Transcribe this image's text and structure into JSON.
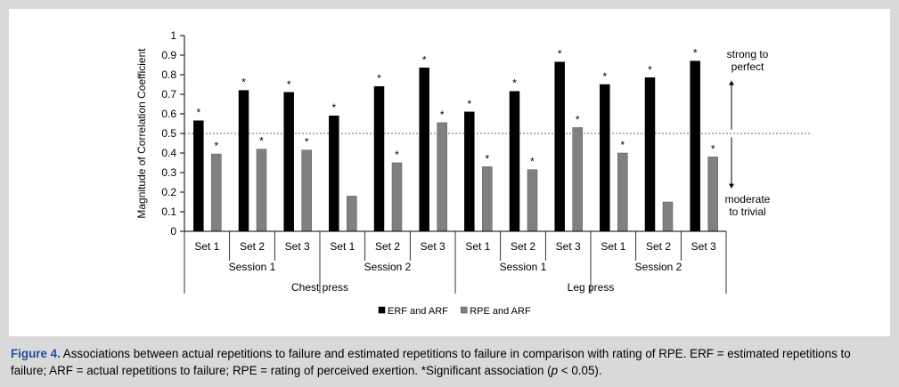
{
  "chart_data": {
    "type": "bar",
    "ylabel": "Magnitude of Correlation Coefficient",
    "ylim": [
      0,
      1
    ],
    "yticks": [
      "0",
      "0.1",
      "0.2",
      "0.3",
      "0.4",
      "0.5",
      "0.6",
      "0.7",
      "0.8",
      "0.9",
      "1"
    ],
    "categories": [
      "Set 1",
      "Set 2",
      "Set 3",
      "Set 1",
      "Set 2",
      "Set 3",
      "Set 1",
      "Set 2",
      "Set 3",
      "Set 1",
      "Set 2",
      "Set 3"
    ],
    "sessions": [
      "Session 1",
      "Session 2",
      "Session 1",
      "Session 2"
    ],
    "exercises": [
      "Chest press",
      "Leg press"
    ],
    "series": [
      {
        "name": "ERF and ARF",
        "color": "#000000",
        "values": [
          0.565,
          0.72,
          0.71,
          0.59,
          0.74,
          0.835,
          0.61,
          0.715,
          0.865,
          0.75,
          0.785,
          0.87
        ],
        "significant": [
          true,
          true,
          true,
          true,
          true,
          true,
          true,
          true,
          true,
          true,
          true,
          true
        ]
      },
      {
        "name": "RPE and ARF",
        "color": "#808080",
        "values": [
          0.395,
          0.42,
          0.415,
          0.18,
          0.35,
          0.555,
          0.33,
          0.315,
          0.53,
          0.4,
          0.15,
          0.38
        ],
        "significant": [
          true,
          true,
          true,
          false,
          true,
          true,
          true,
          true,
          true,
          true,
          false,
          true
        ]
      }
    ],
    "significance_marker": "*",
    "threshold": 0.5,
    "annotations": {
      "upper": [
        "strong to",
        "perfect"
      ],
      "lower": [
        "moderate",
        "to trivial"
      ]
    },
    "legend": "bottom-center"
  },
  "caption": {
    "label": "Figure 4.",
    "text_before_p": "Associations between actual repetitions to failure and estimated repetitions to failure in comparison with rating of RPE. ERF = estimated repetitions to failure; ARF = actual repetitions to failure; RPE = rating of perceived exertion. *Significant association (",
    "p_symbol": "p",
    "text_after_p": " < 0.05)."
  }
}
